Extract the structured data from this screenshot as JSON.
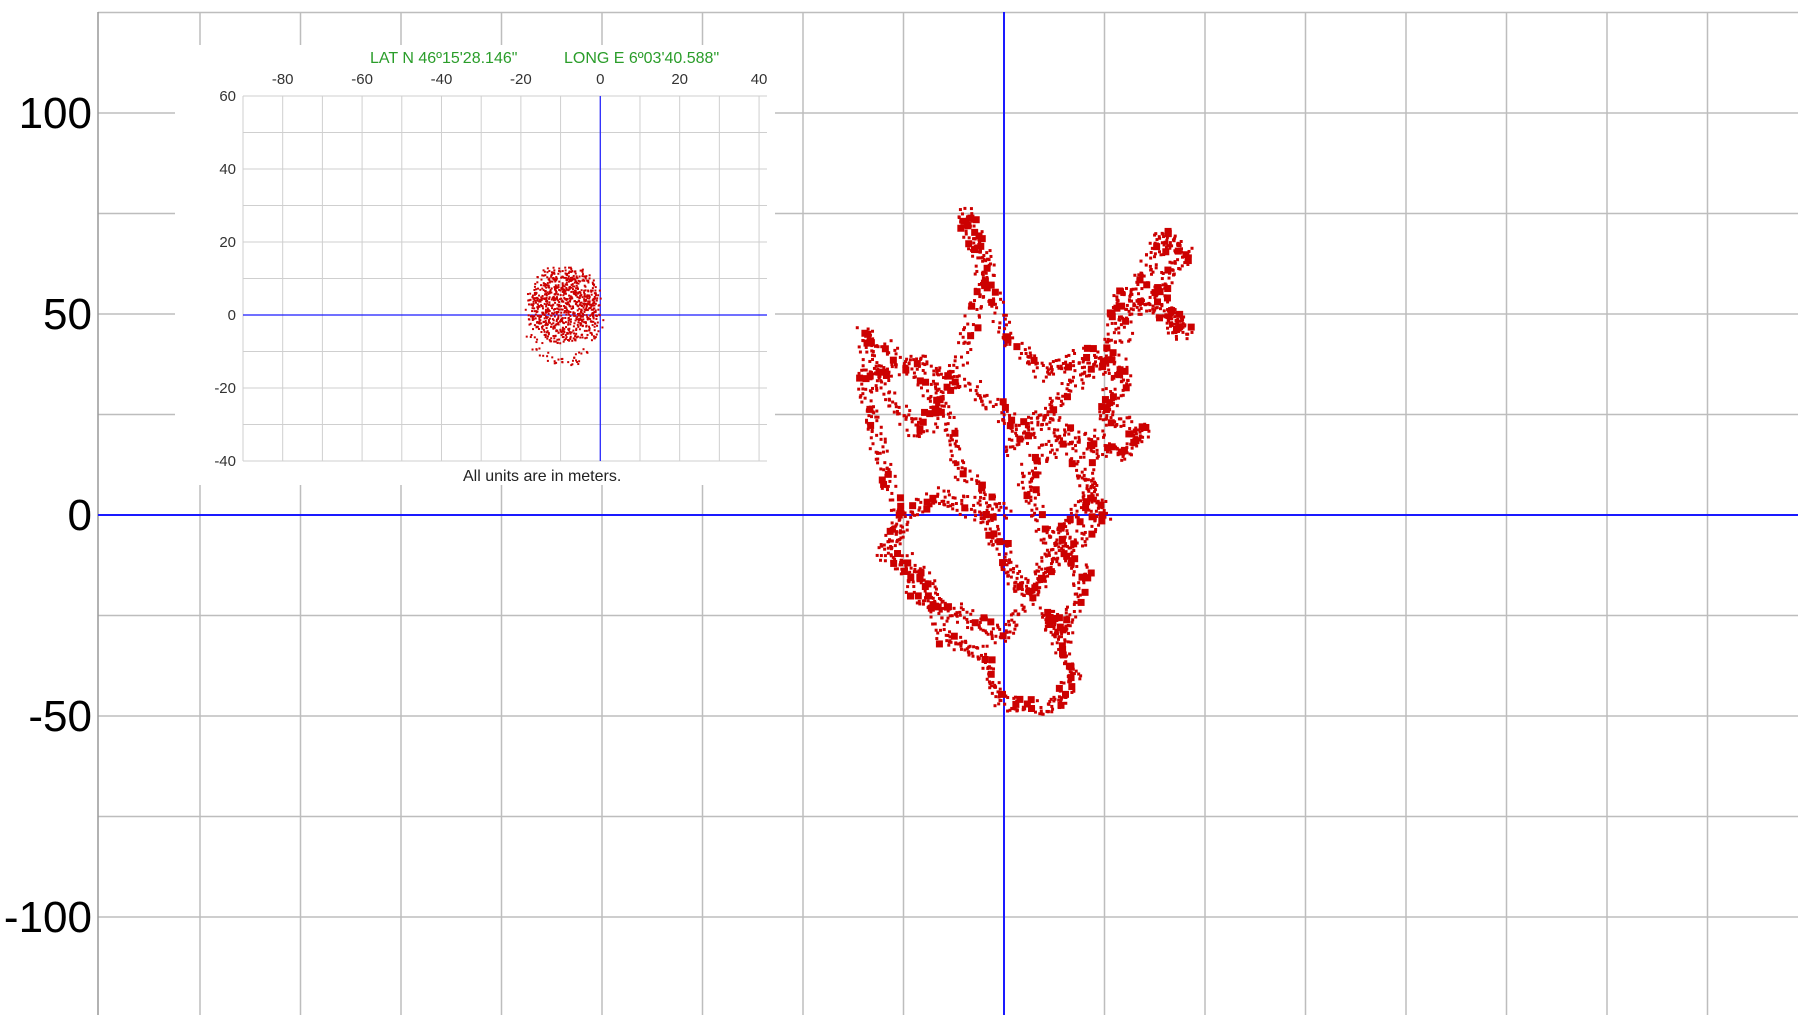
{
  "chart_data": [
    {
      "type": "scatter",
      "title": "",
      "xlabel": "",
      "ylabel": "",
      "xlim": [
        -225,
        200
      ],
      "ylim": [
        -123,
        124
      ],
      "grid": true,
      "y_ticks": [
        100,
        50,
        0,
        -50,
        -100
      ],
      "y_tick_labels": [
        "100",
        "50",
        "0",
        "-50",
        "-100"
      ],
      "axis_color": "#1a1aff",
      "grid_color": "#bdbdbd",
      "point_color": "#cc0000",
      "path_samples": [
        [
          0,
          0
        ],
        [
          -10,
          10
        ],
        [
          -15,
          25
        ],
        [
          -20,
          35
        ],
        [
          -35,
          45
        ],
        [
          -30,
          30
        ],
        [
          -20,
          20
        ],
        [
          -10,
          40
        ],
        [
          -5,
          60
        ],
        [
          -10,
          75
        ],
        [
          -5,
          65
        ],
        [
          0,
          45
        ],
        [
          10,
          35
        ],
        [
          20,
          40
        ],
        [
          30,
          35
        ],
        [
          25,
          25
        ],
        [
          35,
          20
        ],
        [
          28,
          15
        ],
        [
          15,
          20
        ],
        [
          5,
          10
        ],
        [
          10,
          -5
        ],
        [
          20,
          -15
        ],
        [
          15,
          -30
        ],
        [
          10,
          -25
        ],
        [
          18,
          -40
        ],
        [
          12,
          -48
        ],
        [
          0,
          -47
        ],
        [
          -5,
          -35
        ],
        [
          -15,
          -30
        ],
        [
          -20,
          -15
        ],
        [
          -30,
          -10
        ],
        [
          -25,
          0
        ],
        [
          -15,
          5
        ],
        [
          -5,
          0
        ],
        [
          0,
          -10
        ],
        [
          5,
          -20
        ],
        [
          15,
          -10
        ],
        [
          25,
          0
        ],
        [
          20,
          10
        ],
        [
          30,
          45
        ],
        [
          35,
          60
        ],
        [
          40,
          70
        ],
        [
          45,
          65
        ],
        [
          38,
          55
        ],
        [
          45,
          45
        ],
        [
          40,
          50
        ],
        [
          30,
          55
        ],
        [
          25,
          40
        ],
        [
          15,
          30
        ],
        [
          5,
          20
        ],
        [
          -5,
          30
        ],
        [
          -20,
          38
        ],
        [
          -35,
          35
        ],
        [
          -32,
          20
        ],
        [
          -28,
          5
        ],
        [
          -22,
          -20
        ],
        [
          -10,
          -25
        ],
        [
          0,
          -30
        ],
        [
          8,
          -18
        ],
        [
          14,
          -5
        ],
        [
          22,
          5
        ],
        [
          12,
          25
        ],
        [
          0,
          15
        ]
      ]
    },
    {
      "type": "scatter",
      "title": "",
      "subtitle_lat": "LAT N 46º15'28.146\"",
      "subtitle_long": "LONG E 6º03'40.588\"",
      "note": "All units are in meters.",
      "xlabel": "",
      "ylabel": "",
      "xlim": [
        -90,
        42
      ],
      "ylim": [
        -40,
        60
      ],
      "grid": true,
      "x_ticks": [
        -80,
        -60,
        -40,
        -20,
        0,
        20,
        40
      ],
      "x_tick_labels": [
        "-80",
        "-60",
        "-40",
        "-20",
        "0",
        "20",
        "40"
      ],
      "y_ticks": [
        60,
        40,
        20,
        0,
        -20,
        -40
      ],
      "y_tick_labels": [
        "60",
        "40",
        "20",
        "0",
        "-20",
        "-40"
      ],
      "axis_color": "#1a1aff",
      "grid_color": "#cfcfcf",
      "point_color": "#cc0000",
      "cluster_center": [
        -9,
        3
      ],
      "cluster_extent_x": [
        -19,
        2
      ],
      "cluster_extent_y": [
        -16,
        13
      ]
    }
  ]
}
